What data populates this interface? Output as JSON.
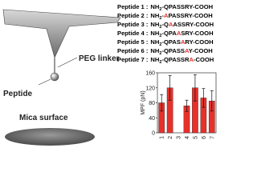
{
  "chart_data": {
    "type": "bar",
    "y_label": "MPF (pN)",
    "categories": [
      "1",
      "2",
      "3",
      "4",
      "5",
      "6",
      "7"
    ],
    "values": [
      80,
      120,
      0,
      72,
      120,
      93,
      85
    ],
    "errors": [
      22,
      33,
      0,
      15,
      35,
      25,
      27
    ],
    "color": "#e8302a",
    "ylim": [
      0,
      160
    ],
    "yticks": [
      0,
      40,
      80,
      120,
      160
    ]
  },
  "peptides": [
    {
      "name": "Peptide 1 :",
      "head": "NH",
      "sub": "2",
      "parts": [
        {
          "text": "-QPASSRY-COOH",
          "color": "#000000"
        }
      ]
    },
    {
      "name": "Peptide 2 :",
      "head": "NH",
      "sub": "2",
      "parts": [
        {
          "text": "-",
          "color": "#000000"
        },
        {
          "text": "A",
          "color": "#e8302a"
        },
        {
          "text": "PASSRY-COOH",
          "color": "#000000"
        }
      ]
    },
    {
      "name": "Peptide 3 :",
      "head": "NH",
      "sub": "2",
      "parts": [
        {
          "text": "-Q",
          "color": "#000000"
        },
        {
          "text": "A",
          "color": "#e8302a"
        },
        {
          "text": "ASSRY-COOH",
          "color": "#000000"
        }
      ]
    },
    {
      "name": "Peptide 4 :",
      "head": "NH",
      "sub": "2",
      "parts": [
        {
          "text": "-QPA",
          "color": "#000000"
        },
        {
          "text": "A",
          "color": "#e8302a"
        },
        {
          "text": "SRY-COOH",
          "color": "#000000"
        }
      ]
    },
    {
      "name": "Peptide 5 :",
      "head": "NH",
      "sub": "2",
      "parts": [
        {
          "text": "-QPAS",
          "color": "#000000"
        },
        {
          "text": "A",
          "color": "#e8302a"
        },
        {
          "text": "RY-COOH",
          "color": "#000000"
        }
      ]
    },
    {
      "name": "Peptide 6 :",
      "head": "NH",
      "sub": "2",
      "parts": [
        {
          "text": "-QPASS",
          "color": "#000000"
        },
        {
          "text": "A",
          "color": "#e8302a"
        },
        {
          "text": "Y-COOH",
          "color": "#000000"
        }
      ]
    },
    {
      "name": "Peptide 7 :",
      "head": "NH",
      "sub": "2",
      "parts": [
        {
          "text": "-QPASSR",
          "color": "#000000"
        },
        {
          "text": "A",
          "color": "#e8302a"
        },
        {
          "text": "-COOH",
          "color": "#000000"
        }
      ]
    }
  ],
  "diagram": {
    "linker_label": "PEG linker",
    "peptide_label": "Peptide",
    "surface_label": "Mica surface"
  }
}
